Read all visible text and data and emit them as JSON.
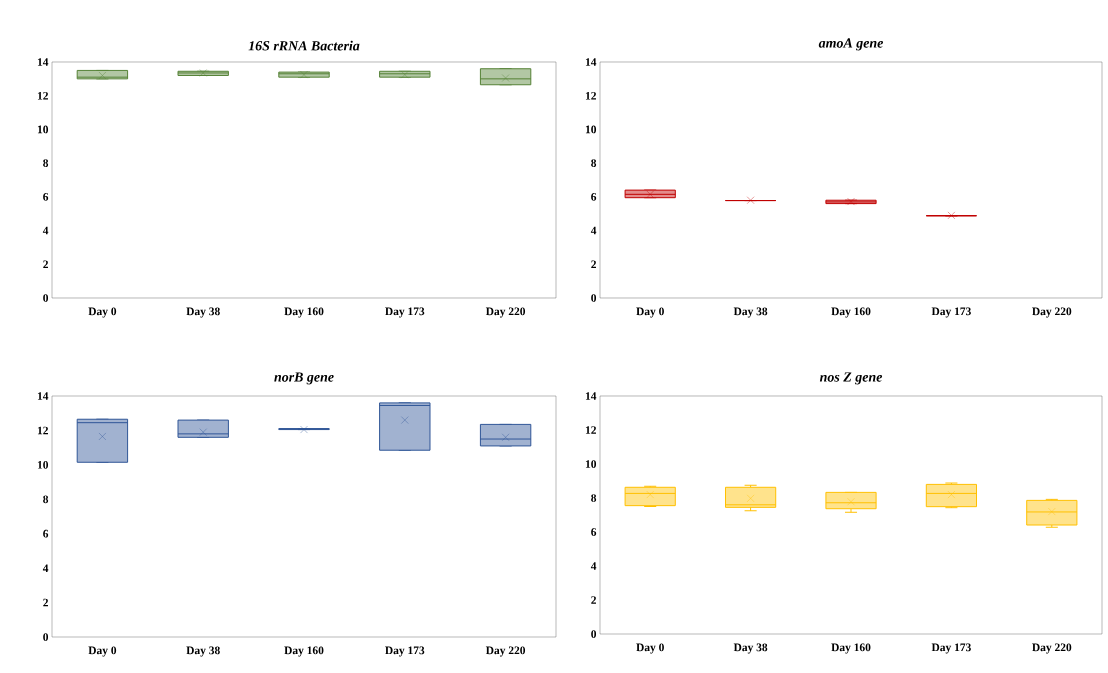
{
  "chart_data": [
    {
      "type": "box",
      "title": "16S rRNA Bacteria",
      "categories": [
        "Day 0",
        "Day 38",
        "Day 160",
        "Day 173",
        "Day 220"
      ],
      "ylim": [
        0,
        14
      ],
      "yticks": [
        0,
        2,
        4,
        6,
        8,
        10,
        12,
        14
      ],
      "grid": false,
      "series": [
        {
          "color": "#548235",
          "boxes": [
            {
              "low": 13.0,
              "q1": 13.0,
              "median": 13.1,
              "q3": 13.5,
              "high": 13.5,
              "mean": 13.2
            },
            {
              "low": 13.2,
              "q1": 13.2,
              "median": 13.35,
              "q3": 13.45,
              "high": 13.45,
              "mean": 13.35
            },
            {
              "low": 13.1,
              "q1": 13.1,
              "median": 13.3,
              "q3": 13.4,
              "high": 13.4,
              "mean": 13.25
            },
            {
              "low": 13.1,
              "q1": 13.1,
              "median": 13.3,
              "q3": 13.45,
              "high": 13.45,
              "mean": 13.25
            },
            {
              "low": 12.65,
              "q1": 12.65,
              "median": 13.0,
              "q3": 13.6,
              "high": 13.6,
              "mean": 13.05
            }
          ]
        }
      ]
    },
    {
      "type": "box",
      "title": "amoA gene",
      "categories": [
        "Day 0",
        "Day 38",
        "Day 160",
        "Day 173",
        "Day 220"
      ],
      "ylim": [
        0,
        14
      ],
      "yticks": [
        0,
        2,
        4,
        6,
        8,
        10,
        12,
        14
      ],
      "grid": false,
      "series": [
        {
          "color": "#c00000",
          "boxes": [
            {
              "low": 5.95,
              "q1": 5.95,
              "median": 6.15,
              "q3": 6.4,
              "high": 6.4,
              "mean": 6.15
            },
            {
              "low": 5.78,
              "q1": 5.78,
              "median": 5.78,
              "q3": 5.78,
              "high": 5.78,
              "mean": 5.8
            },
            {
              "low": 5.6,
              "q1": 5.6,
              "median": 5.7,
              "q3": 5.8,
              "high": 5.8,
              "mean": 5.72
            },
            {
              "low": 4.88,
              "q1": 4.88,
              "median": 4.88,
              "q3": 4.88,
              "high": 4.88,
              "mean": 4.9
            },
            null
          ]
        }
      ]
    },
    {
      "type": "box",
      "title": "norB gene",
      "categories": [
        "Day 0",
        "Day 38",
        "Day 160",
        "Day 173",
        "Day 220"
      ],
      "ylim": [
        0,
        14
      ],
      "yticks": [
        0,
        2,
        4,
        6,
        8,
        10,
        12,
        14
      ],
      "grid": false,
      "series": [
        {
          "color": "#2f5597",
          "boxes": [
            {
              "low": 10.15,
              "q1": 10.15,
              "median": 12.45,
              "q3": 12.65,
              "high": 12.65,
              "mean": 11.65
            },
            {
              "low": 11.6,
              "q1": 11.6,
              "median": 11.8,
              "q3": 12.6,
              "high": 12.6,
              "mean": 11.9
            },
            {
              "low": 12.05,
              "q1": 12.05,
              "median": 12.1,
              "q3": 12.1,
              "high": 12.1,
              "mean": 12.05
            },
            {
              "low": 10.85,
              "q1": 10.85,
              "median": 13.45,
              "q3": 13.6,
              "high": 13.6,
              "mean": 12.6
            },
            {
              "low": 11.1,
              "q1": 11.1,
              "median": 11.5,
              "q3": 12.35,
              "high": 12.35,
              "mean": 11.6
            }
          ]
        }
      ]
    },
    {
      "type": "box",
      "title": "nos Z gene",
      "categories": [
        "Day 0",
        "Day 38",
        "Day 160",
        "Day 173",
        "Day 220"
      ],
      "ylim": [
        0,
        14
      ],
      "yticks": [
        0,
        2,
        4,
        6,
        8,
        10,
        12,
        14
      ],
      "grid": false,
      "series": [
        {
          "color": "#ffc000",
          "boxes": [
            {
              "low": 7.5,
              "q1": 7.55,
              "median": 8.27,
              "q3": 8.63,
              "high": 8.69,
              "mean": 8.2
            },
            {
              "low": 7.25,
              "q1": 7.45,
              "median": 7.6,
              "q3": 8.63,
              "high": 8.75,
              "mean": 7.98
            },
            {
              "low": 7.16,
              "q1": 7.37,
              "median": 7.72,
              "q3": 8.33,
              "high": 8.33,
              "mean": 7.78
            },
            {
              "low": 7.43,
              "q1": 7.49,
              "median": 8.27,
              "q3": 8.8,
              "high": 8.88,
              "mean": 8.2
            },
            {
              "low": 6.28,
              "q1": 6.41,
              "median": 7.18,
              "q3": 7.86,
              "high": 7.92,
              "mean": 7.2
            }
          ]
        }
      ]
    }
  ]
}
